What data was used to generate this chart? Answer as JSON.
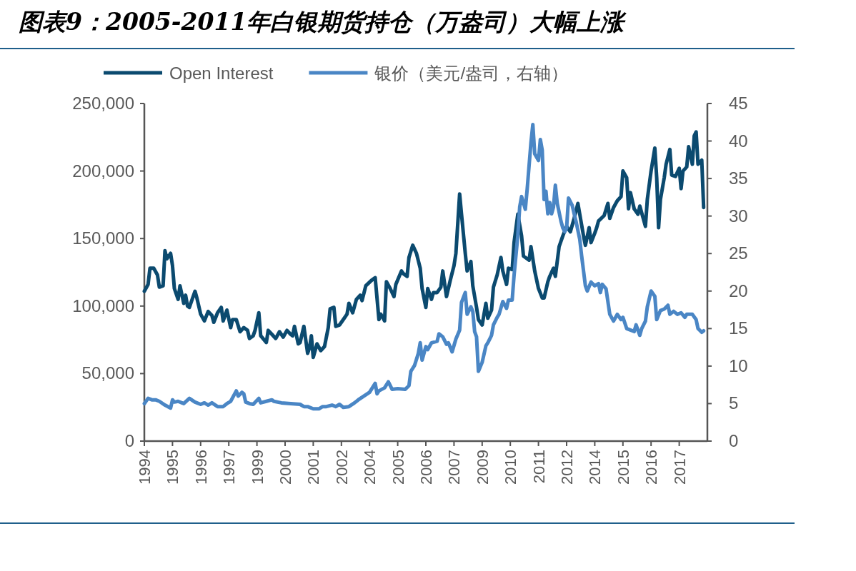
{
  "chart_data": {
    "type": "line",
    "title": "图表9：2005-2011年白银期货持仓（万盎司）大幅上涨",
    "legend": "top",
    "xlim": [
      "1994-01",
      "2019-01"
    ],
    "xticks": [
      {
        "value": "1994-01",
        "label": "1994"
      },
      {
        "value": "1995-04",
        "label": "1995"
      },
      {
        "value": "1996-07",
        "label": "1996"
      },
      {
        "value": "1997-10",
        "label": "1997"
      },
      {
        "value": "1999-01",
        "label": "1999"
      },
      {
        "value": "2000-04",
        "label": "2000"
      },
      {
        "value": "2001-07",
        "label": "2001"
      },
      {
        "value": "2002-10",
        "label": "2002"
      },
      {
        "value": "2004-01",
        "label": "2004"
      },
      {
        "value": "2005-04",
        "label": "2005"
      },
      {
        "value": "2006-07",
        "label": "2006"
      },
      {
        "value": "2007-10",
        "label": "2007"
      },
      {
        "value": "2009-01",
        "label": "2009"
      },
      {
        "value": "2010-04",
        "label": "2010"
      },
      {
        "value": "2011-07",
        "label": "2011"
      },
      {
        "value": "2012-10",
        "label": "2012"
      },
      {
        "value": "2014-01",
        "label": "2014"
      },
      {
        "value": "2015-04",
        "label": "2015"
      },
      {
        "value": "2016-07",
        "label": "2016"
      },
      {
        "value": "2017-10",
        "label": "2017"
      }
    ],
    "ylim": [
      0,
      250000
    ],
    "yticks": [
      0,
      {
        "value": 50000,
        "label": "50,000"
      },
      {
        "value": 100000,
        "label": "100,000"
      },
      {
        "value": 150000,
        "label": "150,000"
      },
      {
        "value": 200000,
        "label": "200,000"
      },
      {
        "value": 250000,
        "label": "250,000"
      }
    ],
    "y2lim": [
      0,
      45
    ],
    "y2ticks": [
      0,
      5,
      10,
      15,
      20,
      25,
      30,
      35,
      40,
      45
    ],
    "series": [
      {
        "name": "Open Interest",
        "color": "#0b4a6f",
        "x": [
          "1994-01",
          "1994-03",
          "1994-04",
          "1994-06",
          "1994-08",
          "1994-09",
          "1994-11",
          "1994-12",
          "1995-01",
          "1995-03",
          "1995-04",
          "1995-05",
          "1995-07",
          "1995-08",
          "1995-10",
          "1995-11",
          "1995-12",
          "1996-01",
          "1996-04",
          "1996-05",
          "1996-07",
          "1996-09",
          "1996-11",
          "1997-01",
          "1997-02",
          "1997-04",
          "1997-06",
          "1997-07",
          "1997-09",
          "1997-11",
          "1997-12",
          "1998-02",
          "1998-04",
          "1998-06",
          "1998-08",
          "1998-09",
          "1998-11",
          "1998-12",
          "1999-02",
          "1999-03",
          "1999-06",
          "1999-07",
          "1999-09",
          "1999-11",
          "2000-01",
          "2000-03",
          "2000-05",
          "2000-07",
          "2000-08",
          "2000-09",
          "2000-11",
          "2000-12",
          "2001-02",
          "2001-04",
          "2001-05",
          "2001-06",
          "2001-07",
          "2001-09",
          "2001-11",
          "2002-01",
          "2002-03",
          "2002-04",
          "2002-06",
          "2002-07",
          "2002-09",
          "2002-11",
          "2003-01",
          "2003-02",
          "2003-04",
          "2003-06",
          "2003-08",
          "2003-09",
          "2003-11",
          "2004-02",
          "2004-04",
          "2004-06",
          "2004-07",
          "2004-09",
          "2004-10",
          "2004-12",
          "2005-02",
          "2005-03",
          "2005-06",
          "2005-07",
          "2005-09",
          "2005-10",
          "2005-12",
          "2006-01",
          "2006-02",
          "2006-04",
          "2006-05",
          "2006-07",
          "2006-08",
          "2006-10",
          "2006-11",
          "2007-01",
          "2007-03",
          "2007-04",
          "2007-06",
          "2007-08",
          "2007-10",
          "2007-11",
          "2008-01",
          "2008-02",
          "2008-04",
          "2008-05",
          "2008-07",
          "2008-08",
          "2008-10",
          "2008-11",
          "2009-01",
          "2009-03",
          "2009-04",
          "2009-06",
          "2009-07",
          "2009-09",
          "2009-11",
          "2009-12",
          "2010-02",
          "2010-03",
          "2010-05",
          "2010-06",
          "2010-08",
          "2010-10",
          "2010-11",
          "2011-02",
          "2011-03",
          "2011-05",
          "2011-07",
          "2011-09",
          "2011-10",
          "2011-12",
          "2012-01",
          "2012-03",
          "2012-04",
          "2012-06",
          "2012-08",
          "2012-10",
          "2012-12",
          "2013-02",
          "2013-04",
          "2013-05",
          "2013-07",
          "2013-08",
          "2013-10",
          "2013-11",
          "2014-01",
          "2014-02",
          "2014-03",
          "2014-06",
          "2014-08",
          "2014-09",
          "2014-11",
          "2015-01",
          "2015-03",
          "2015-04",
          "2015-06",
          "2015-07",
          "2015-08",
          "2015-10",
          "2015-12",
          "2016-01",
          "2016-04",
          "2016-05",
          "2016-07",
          "2016-09",
          "2016-10",
          "2016-11",
          "2016-12",
          "2017-02",
          "2017-03",
          "2017-05",
          "2017-06",
          "2017-08",
          "2017-10",
          "2017-11",
          "2017-12",
          "2018-02",
          "2018-03",
          "2018-05",
          "2018-06",
          "2018-07",
          "2018-08",
          "2018-10",
          "2018-11"
        ],
        "values": [
          111000,
          116000,
          128000,
          128000,
          123000,
          114000,
          115000,
          141000,
          135000,
          139000,
          130000,
          113000,
          105000,
          115000,
          102000,
          108000,
          100000,
          99000,
          111000,
          106000,
          94000,
          89000,
          96000,
          93000,
          88000,
          95000,
          99000,
          89000,
          97000,
          84000,
          90000,
          90000,
          81000,
          84000,
          82000,
          76000,
          78000,
          82000,
          95000,
          78000,
          73000,
          82000,
          79000,
          76000,
          81000,
          77000,
          82000,
          79000,
          78000,
          85000,
          72000,
          73000,
          85000,
          65000,
          69000,
          78000,
          62000,
          72000,
          67000,
          70000,
          84000,
          98000,
          99000,
          85000,
          86000,
          90000,
          94000,
          102000,
          95000,
          105000,
          108000,
          104000,
          115000,
          119000,
          121000,
          90000,
          94000,
          89000,
          118000,
          113000,
          107000,
          116000,
          126000,
          124000,
          122000,
          136000,
          145000,
          142000,
          139000,
          128000,
          113000,
          99000,
          113000,
          105000,
          110000,
          110000,
          114000,
          126000,
          107000,
          119000,
          130000,
          139000,
          183000,
          168000,
          139000,
          126000,
          133000,
          115000,
          99000,
          90000,
          86000,
          102000,
          91000,
          97000,
          114000,
          123000,
          136000,
          126000,
          116000,
          128000,
          127000,
          147000,
          168000,
          152000,
          137000,
          134000,
          144000,
          126000,
          113000,
          106000,
          106000,
          118000,
          122000,
          128000,
          122000,
          144000,
          152000,
          159000,
          155000,
          165000,
          176000,
          168000,
          152000,
          145000,
          158000,
          147000,
          154000,
          158000,
          163000,
          167000,
          176000,
          165000,
          173000,
          178000,
          181000,
          200000,
          195000,
          172000,
          184000,
          172000,
          168000,
          174000,
          159000,
          179000,
          200000,
          217000,
          195000,
          158000,
          179000,
          195000,
          205000,
          216000,
          197000,
          196000,
          202000,
          187000,
          200000,
          203000,
          218000,
          205000,
          226000,
          229000,
          205000,
          208000,
          173000
        ]
      },
      {
        "name": "银价（美元/盎司，右轴）",
        "color": "#4a86c5",
        "axis": "y2",
        "x": [
          "1994-01",
          "1994-03",
          "1994-05",
          "1994-07",
          "1994-09",
          "1994-12",
          "1995-03",
          "1995-04",
          "1995-05",
          "1995-07",
          "1995-10",
          "1996-01",
          "1996-04",
          "1996-07",
          "1996-09",
          "1996-11",
          "1997-01",
          "1997-04",
          "1997-07",
          "1997-09",
          "1997-11",
          "1998-02",
          "1998-03",
          "1998-05",
          "1998-06",
          "1998-07",
          "1998-09",
          "1998-11",
          "1999-02",
          "1999-03",
          "1999-06",
          "1999-09",
          "1999-10",
          "2000-02",
          "2000-12",
          "2001-02",
          "2001-04",
          "2001-07",
          "2001-10",
          "2001-12",
          "2002-02",
          "2002-05",
          "2002-07",
          "2002-09",
          "2002-11",
          "2003-02",
          "2003-05",
          "2003-07",
          "2003-10",
          "2004-01",
          "2004-04",
          "2004-05",
          "2004-06",
          "2004-09",
          "2004-11",
          "2005-01",
          "2005-04",
          "2005-08",
          "2005-10",
          "2005-11",
          "2006-01",
          "2006-03",
          "2006-04",
          "2006-05",
          "2006-07",
          "2006-08",
          "2006-10",
          "2007-01",
          "2007-02",
          "2007-04",
          "2007-06",
          "2007-07",
          "2007-09",
          "2007-11",
          "2008-01",
          "2008-02",
          "2008-04",
          "2008-05",
          "2008-07",
          "2008-08",
          "2008-09",
          "2008-10",
          "2008-11",
          "2009-01",
          "2009-03",
          "2009-04",
          "2009-06",
          "2009-07",
          "2009-09",
          "2009-10",
          "2009-12",
          "2010-02",
          "2010-03",
          "2010-05",
          "2010-06",
          "2010-08",
          "2010-09",
          "2010-10",
          "2010-12",
          "2011-01",
          "2011-03",
          "2011-04",
          "2011-05",
          "2011-07",
          "2011-08",
          "2011-09",
          "2011-10",
          "2011-11",
          "2011-12",
          "2012-01",
          "2012-02",
          "2012-03",
          "2012-04",
          "2012-05",
          "2012-07",
          "2012-08",
          "2012-09",
          "2012-10",
          "2012-11",
          "2013-01",
          "2013-02",
          "2013-03",
          "2013-05",
          "2013-06",
          "2013-08",
          "2013-09",
          "2013-11",
          "2014-01",
          "2014-03",
          "2014-04",
          "2014-05",
          "2014-07",
          "2014-09",
          "2014-11",
          "2015-01",
          "2015-03",
          "2015-04",
          "2015-06",
          "2015-08",
          "2015-10",
          "2015-11",
          "2016-01",
          "2016-02",
          "2016-04",
          "2016-05",
          "2016-07",
          "2016-09",
          "2016-10",
          "2016-12",
          "2017-02",
          "2017-04",
          "2017-05",
          "2017-07",
          "2017-09",
          "2017-11",
          "2018-01",
          "2018-02",
          "2018-05",
          "2018-07",
          "2018-08",
          "2018-10",
          "2018-11"
        ],
        "values": [
          5.0,
          5.7,
          5.5,
          5.5,
          5.3,
          4.8,
          4.4,
          5.5,
          5.2,
          5.3,
          5.0,
          5.7,
          5.2,
          4.9,
          5.1,
          4.8,
          5.1,
          4.6,
          4.6,
          5.0,
          5.3,
          6.7,
          6.0,
          6.5,
          6.3,
          5.2,
          5.0,
          4.9,
          5.7,
          5.1,
          5.3,
          5.5,
          5.3,
          5.1,
          4.9,
          4.6,
          4.6,
          4.3,
          4.3,
          4.6,
          4.6,
          4.8,
          4.6,
          4.9,
          4.5,
          4.6,
          5.1,
          5.5,
          6.0,
          6.5,
          7.7,
          6.3,
          6.7,
          7.1,
          7.9,
          6.9,
          7.0,
          6.9,
          7.4,
          9.3,
          10.1,
          11.7,
          13.1,
          10.8,
          12.6,
          12.2,
          13.1,
          13.3,
          14.3,
          13.9,
          12.9,
          13.1,
          11.9,
          13.6,
          14.8,
          18.5,
          19.8,
          16.9,
          17.9,
          17.3,
          14.6,
          13.9,
          9.3,
          10.5,
          12.7,
          13.1,
          14.1,
          15.5,
          16.5,
          16.9,
          18.6,
          17.7,
          18.8,
          18.8,
          22.1,
          27.4,
          31.2,
          32.6,
          30.9,
          33.6,
          39.8,
          42.2,
          38.3,
          37.4,
          40.2,
          38.8,
          32.2,
          33.3,
          30.3,
          31.8,
          30.3,
          31.2,
          34.1,
          31.7,
          29.3,
          28.4,
          27.9,
          28.4,
          32.4,
          31.4,
          30.3,
          29.3,
          26.9,
          24.7,
          20.7,
          20.0,
          21.2,
          20.7,
          21.0,
          19.8,
          20.9,
          20.3,
          16.9,
          16.0,
          16.9,
          16.2,
          16.5,
          15.0,
          14.8,
          14.6,
          15.5,
          14.1,
          15.0,
          16.0,
          17.9,
          20.0,
          19.3,
          16.2,
          17.4,
          17.6,
          18.1,
          16.9,
          17.3,
          16.9,
          17.1,
          16.5,
          16.9,
          16.9,
          16.2,
          15.0,
          14.5,
          14.7
        ]
      }
    ]
  }
}
